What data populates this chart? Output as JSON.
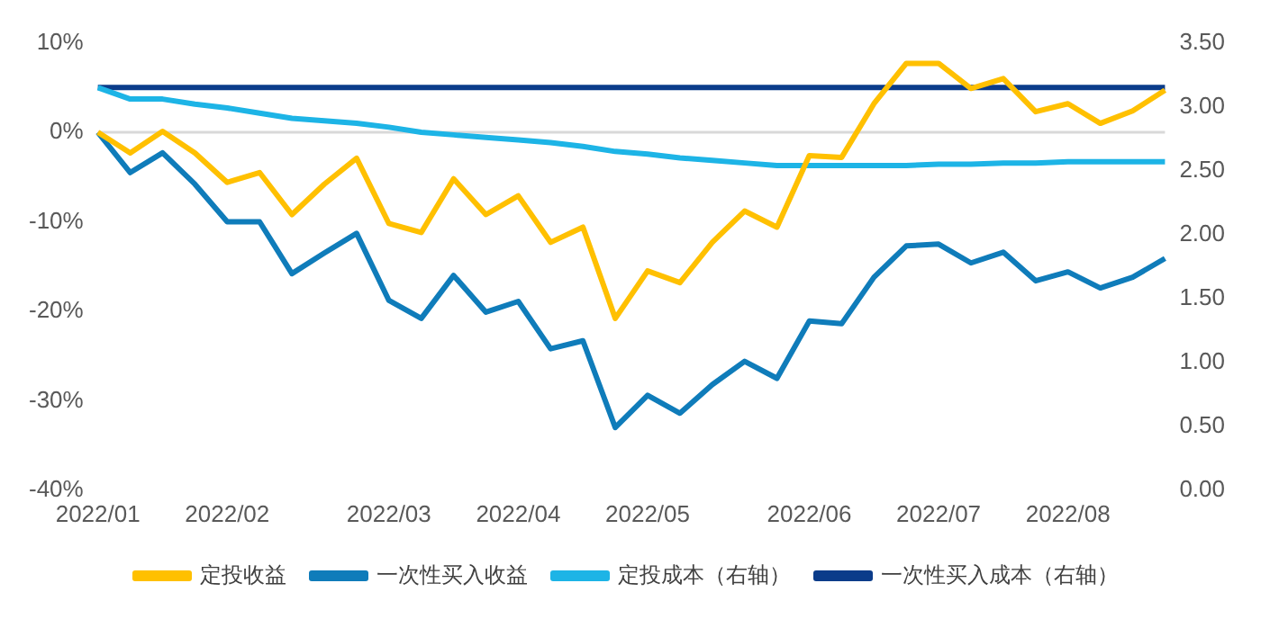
{
  "chart_data": {
    "type": "line",
    "categories": [
      "2022/01",
      null,
      null,
      null,
      "2022/02",
      null,
      null,
      null,
      null,
      "2022/03",
      null,
      null,
      null,
      "2022/04",
      null,
      null,
      null,
      "2022/05",
      null,
      null,
      null,
      null,
      "2022/06",
      null,
      null,
      null,
      "2022/07",
      null,
      null,
      null,
      "2022/08",
      null,
      null,
      null
    ],
    "series": [
      {
        "name": "定投收益",
        "color": "#ffc000",
        "values": [
          0,
          -2.3,
          0.1,
          -2.3,
          -5.6,
          -4.5,
          -9.2,
          -5.8,
          -2.9,
          -10.2,
          -11.2,
          -5.2,
          -9.2,
          -7.1,
          -12.3,
          -10.6,
          -20.8,
          -15.5,
          -16.8,
          -12.3,
          -8.8,
          -10.6,
          -2.6,
          -2.8,
          3.2,
          7.7,
          7.7,
          4.9,
          6.0,
          2.3,
          3.2,
          1.0,
          2.4,
          4.7
        ]
      },
      {
        "name": "一次性买入收益",
        "color": "#0f7cba",
        "values": [
          0,
          -4.5,
          -2.3,
          -5.8,
          -10.0,
          -10.0,
          -15.8,
          -13.5,
          -11.3,
          -18.8,
          -20.8,
          -16.0,
          -20.1,
          -18.9,
          -24.2,
          -23.3,
          -33.0,
          -29.4,
          -31.4,
          -28.2,
          -25.6,
          -27.5,
          -21.1,
          -21.4,
          -16.2,
          -12.7,
          -12.5,
          -14.6,
          -13.4,
          -16.6,
          -15.6,
          -17.4,
          -16.2,
          -14.1
        ]
      },
      {
        "name": "定投成本（右轴）",
        "color": "#1db4e6",
        "axis": "y2",
        "values": [
          3.15,
          3.06,
          3.06,
          3.02,
          2.99,
          2.95,
          2.91,
          2.89,
          2.87,
          2.84,
          2.8,
          2.78,
          2.76,
          2.74,
          2.72,
          2.69,
          2.65,
          2.63,
          2.6,
          2.58,
          2.56,
          2.54,
          2.54,
          2.54,
          2.54,
          2.54,
          2.55,
          2.55,
          2.56,
          2.56,
          2.57,
          2.57,
          2.57,
          2.57
        ]
      },
      {
        "name": "一次性买入成本（右轴）",
        "color": "#0b3c8a",
        "axis": "y2",
        "values": [
          3.15,
          3.15,
          3.15,
          3.15,
          3.15,
          3.15,
          3.15,
          3.15,
          3.15,
          3.15,
          3.15,
          3.15,
          3.15,
          3.15,
          3.15,
          3.15,
          3.15,
          3.15,
          3.15,
          3.15,
          3.15,
          3.15,
          3.15,
          3.15,
          3.15,
          3.15,
          3.15,
          3.15,
          3.15,
          3.15,
          3.15,
          3.15,
          3.15,
          3.15
        ]
      }
    ],
    "ylim": [
      -40,
      10
    ],
    "yticks": [
      {
        "value": -40,
        "label": "-40%"
      },
      {
        "value": -30,
        "label": "-30%"
      },
      {
        "value": -20,
        "label": "-20%"
      },
      {
        "value": -10,
        "label": "-10%"
      },
      {
        "value": 0,
        "label": "0%"
      },
      {
        "value": 10,
        "label": "10%"
      }
    ],
    "y2lim": [
      0,
      3.5
    ],
    "y2ticks": [
      {
        "value": 0,
        "label": "0.00"
      },
      {
        "value": 0.5,
        "label": "0.50"
      },
      {
        "value": 1,
        "label": "1.00"
      },
      {
        "value": 1.5,
        "label": "1.50"
      },
      {
        "value": 2,
        "label": "2.00"
      },
      {
        "value": 2.5,
        "label": "2.50"
      },
      {
        "value": 3,
        "label": "3.00"
      },
      {
        "value": 3.5,
        "label": "3.50"
      }
    ],
    "ref_lines": [
      {
        "axis": "y",
        "value": 0,
        "color": "#d9d9d9"
      }
    ],
    "grid": false,
    "legend": "bottom",
    "marker": "none",
    "line_style": "solid"
  }
}
